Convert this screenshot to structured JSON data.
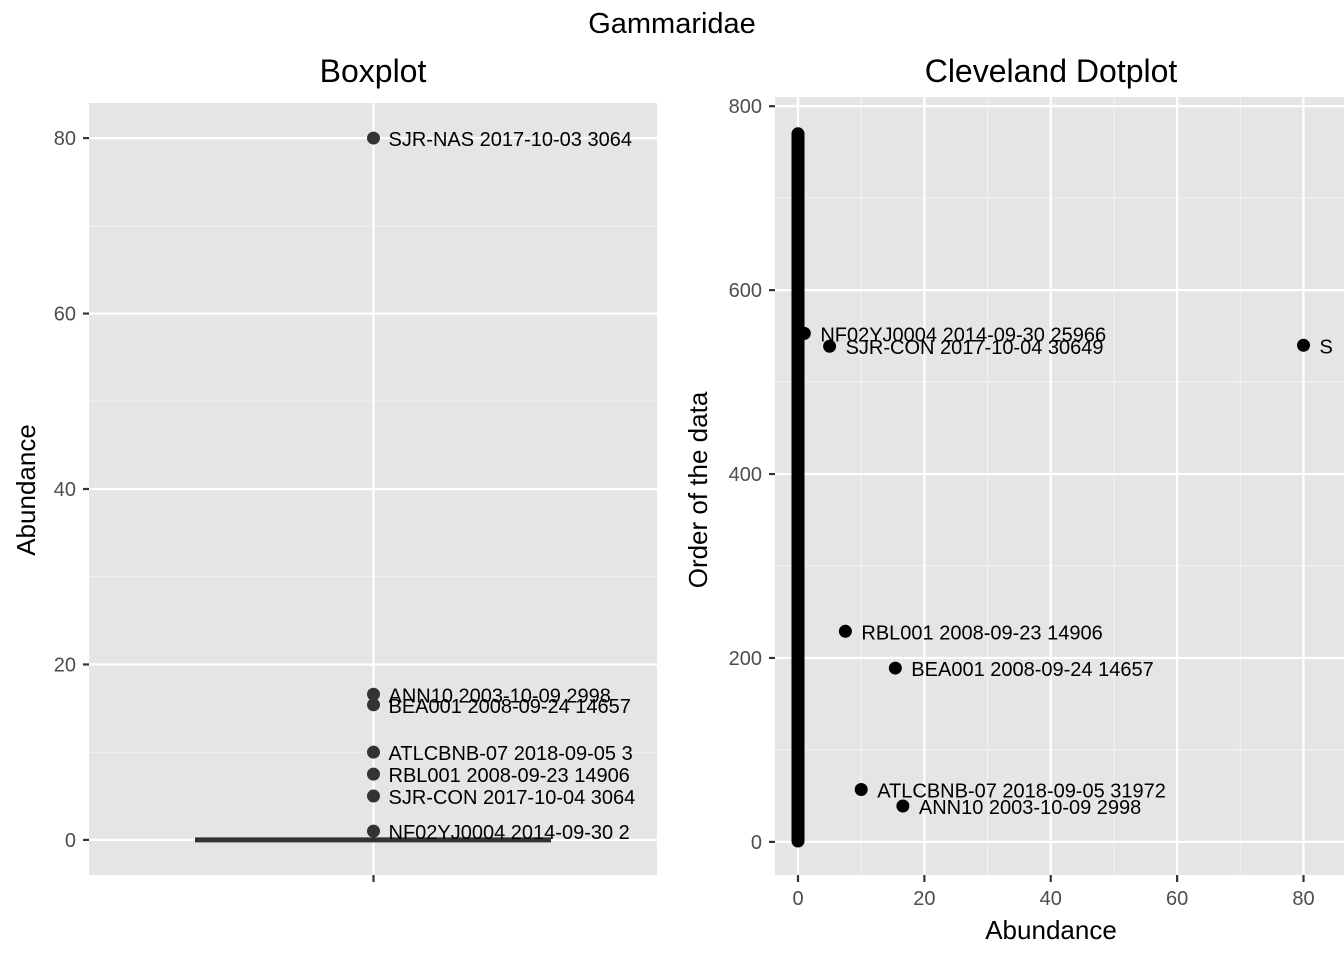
{
  "figure": {
    "title": "Gammaridae"
  },
  "chart_data": [
    {
      "type": "boxplot",
      "title": "Boxplot",
      "xlabel": "",
      "ylabel": "Abundance",
      "ylim": [
        -4,
        84
      ],
      "yticks": [
        0,
        20,
        40,
        60,
        80
      ],
      "grid": true,
      "median": 0,
      "q1": 0,
      "q3": 0,
      "outliers": [
        {
          "value": 80,
          "label": "SJR-NAS 2017-10-03 3064"
        },
        {
          "value": 16.6,
          "label": "ANN10 2003-10-09 2998"
        },
        {
          "value": 15.4,
          "label": "BEA001 2008-09-24 14657"
        },
        {
          "value": 10,
          "label": "ATLCBNB-07 2018-09-05 3"
        },
        {
          "value": 7.5,
          "label": "RBL001 2008-09-23 14906"
        },
        {
          "value": 5,
          "label": "SJR-CON 2017-10-04 3064"
        },
        {
          "value": 1,
          "label": "NF02YJ0004 2014-09-30 2"
        }
      ]
    },
    {
      "type": "scatter",
      "title": "Cleveland Dotplot",
      "xlabel": "Abundance",
      "ylabel": "Order of the data",
      "xlim": [
        -4,
        84
      ],
      "ylim": [
        -36,
        810
      ],
      "xticks": [
        0,
        20,
        40,
        60,
        80
      ],
      "yticks": [
        0,
        200,
        400,
        600,
        800
      ],
      "grid": true,
      "zero_band": {
        "x": 0,
        "y_from": 1,
        "y_to": 770
      },
      "points": [
        {
          "x": 1,
          "y": 553,
          "label": "NF02YJ0004 2014-09-30 25966"
        },
        {
          "x": 5,
          "y": 539,
          "label": "SJR-CON 2017-10-04 30649"
        },
        {
          "x": 80,
          "y": 540,
          "label": "S"
        },
        {
          "x": 7.5,
          "y": 229,
          "label": "RBL001 2008-09-23 14906"
        },
        {
          "x": 15.4,
          "y": 189,
          "label": "BEA001 2008-09-24 14657"
        },
        {
          "x": 10,
          "y": 57,
          "label": "ATLCBNB-07 2018-09-05 31972"
        },
        {
          "x": 16.6,
          "y": 39,
          "label": "ANN10 2003-10-09 2998"
        }
      ]
    }
  ]
}
